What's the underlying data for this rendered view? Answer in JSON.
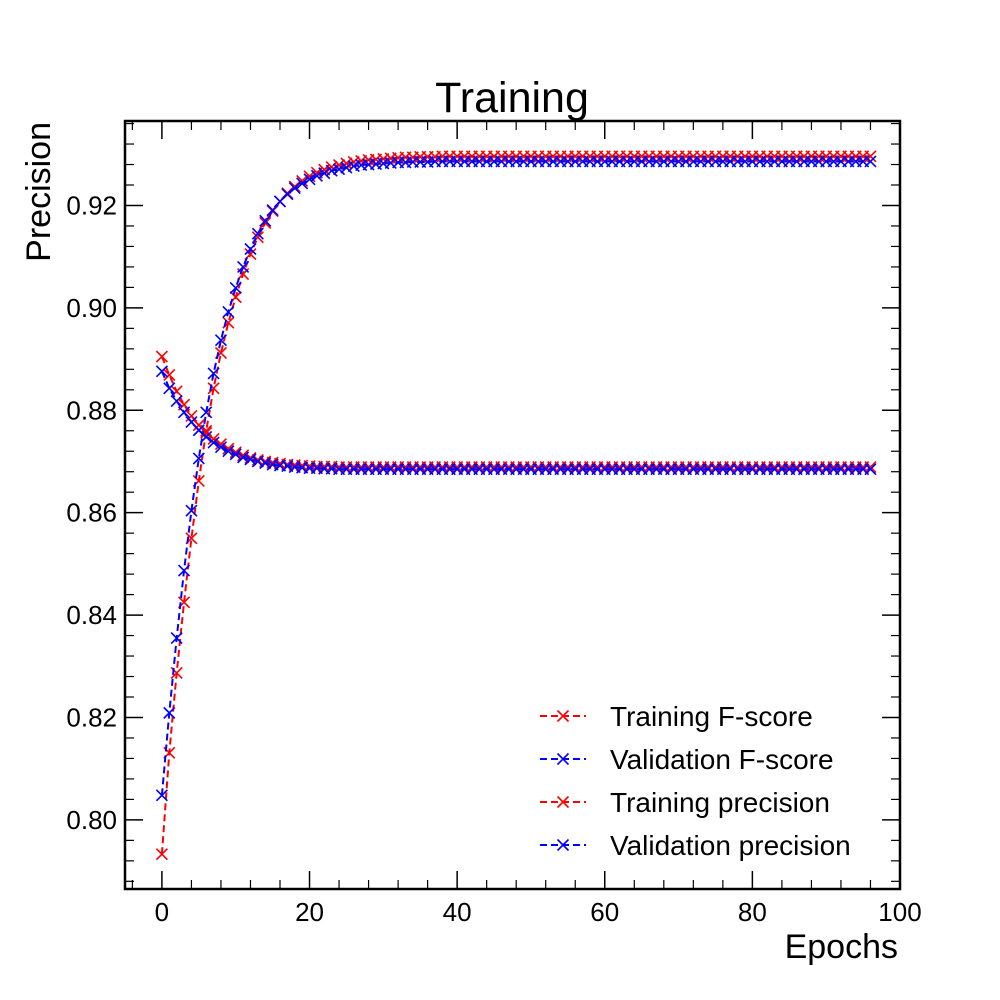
{
  "chart_data": {
    "type": "line",
    "title": "Training",
    "xlabel": "Epochs",
    "ylabel": "Precision",
    "xlim": [
      -5,
      100
    ],
    "ylim": [
      0.7865,
      0.9365
    ],
    "xticks": [
      0,
      20,
      40,
      60,
      80,
      100
    ],
    "xtick_labels": [
      "0",
      "20",
      "40",
      "60",
      "80",
      "100"
    ],
    "yticks": [
      0.8,
      0.82,
      0.84,
      0.86,
      0.88,
      0.9,
      0.92
    ],
    "ytick_labels": [
      "0.80",
      "0.82",
      "0.84",
      "0.86",
      "0.88",
      "0.90",
      "0.92"
    ],
    "grid": false,
    "legend_position": "bottom-right",
    "x": [
      0,
      1,
      2,
      3,
      4,
      5,
      6,
      7,
      8,
      9,
      10,
      11,
      12,
      13,
      14,
      15,
      16,
      17,
      18,
      19,
      20,
      21,
      22,
      23,
      24,
      25,
      26,
      27,
      28,
      29,
      30,
      31,
      32,
      33,
      34,
      35,
      36,
      37,
      38,
      39,
      40,
      41,
      42,
      43,
      44,
      45,
      46,
      47,
      48,
      49,
      50,
      51,
      52,
      53,
      54,
      55,
      56,
      57,
      58,
      59,
      60,
      61,
      62,
      63,
      64,
      65,
      66,
      67,
      68,
      69,
      70,
      71,
      72,
      73,
      74,
      75,
      76,
      77,
      78,
      79,
      80,
      81,
      82,
      83,
      84,
      85,
      86,
      87,
      88,
      89,
      90,
      91,
      92,
      93,
      94,
      95,
      96
    ],
    "series": [
      {
        "name": "Training F-score",
        "color": "#ff0000",
        "values": [
          0.7933,
          0.8131,
          0.8287,
          0.8425,
          0.855,
          0.8662,
          0.876,
          0.8843,
          0.8912,
          0.8971,
          0.9021,
          0.9066,
          0.9105,
          0.9138,
          0.9166,
          0.9189,
          0.9208,
          0.9224,
          0.9237,
          0.9248,
          0.9257,
          0.9264,
          0.927,
          0.9275,
          0.9279,
          0.9282,
          0.9285,
          0.9287,
          0.9289,
          0.929,
          0.9291,
          0.9292,
          0.9293,
          0.9294,
          0.9294,
          0.9295,
          0.9295,
          0.9295,
          0.9296,
          0.9296,
          0.9296,
          0.9296,
          0.9296,
          0.9296,
          0.9296,
          0.9296,
          0.9296,
          0.9296,
          0.9296,
          0.9296,
          0.9296,
          0.9296,
          0.9296,
          0.9296,
          0.9296,
          0.9296,
          0.9296,
          0.9296,
          0.9296,
          0.9296,
          0.9296,
          0.9296,
          0.9296,
          0.9296,
          0.9296,
          0.9296,
          0.9296,
          0.9296,
          0.9296,
          0.9296,
          0.9296,
          0.9296,
          0.9296,
          0.9296,
          0.9296,
          0.9296,
          0.9296,
          0.9296,
          0.9296,
          0.9296,
          0.9296,
          0.9296,
          0.9296,
          0.9296,
          0.9296,
          0.9296,
          0.9296,
          0.9296,
          0.9296,
          0.9296,
          0.9296,
          0.9296,
          0.9296,
          0.9296,
          0.9296,
          0.9296,
          0.9296
        ]
      },
      {
        "name": "Validation F-score",
        "color": "#0000ff",
        "values": [
          0.8048,
          0.8209,
          0.8355,
          0.8487,
          0.8604,
          0.8706,
          0.8796,
          0.8872,
          0.8937,
          0.8992,
          0.9039,
          0.908,
          0.9115,
          0.9145,
          0.917,
          0.9191,
          0.9208,
          0.9222,
          0.9234,
          0.9243,
          0.9251,
          0.9258,
          0.9263,
          0.9268,
          0.9271,
          0.9274,
          0.9277,
          0.9279,
          0.928,
          0.9281,
          0.9282,
          0.9283,
          0.9284,
          0.9284,
          0.9285,
          0.9285,
          0.9285,
          0.9286,
          0.9286,
          0.9286,
          0.9286,
          0.9286,
          0.9286,
          0.9286,
          0.9286,
          0.9286,
          0.9286,
          0.9286,
          0.9286,
          0.9286,
          0.9286,
          0.9286,
          0.9286,
          0.9286,
          0.9286,
          0.9286,
          0.9286,
          0.9286,
          0.9286,
          0.9286,
          0.9286,
          0.9286,
          0.9286,
          0.9286,
          0.9286,
          0.9286,
          0.9286,
          0.9286,
          0.9286,
          0.9286,
          0.9286,
          0.9286,
          0.9286,
          0.9286,
          0.9286,
          0.9286,
          0.9286,
          0.9286,
          0.9286,
          0.9286,
          0.9286,
          0.9286,
          0.9286,
          0.9286,
          0.9286,
          0.9286,
          0.9286,
          0.9286,
          0.9286,
          0.9286,
          0.9286,
          0.9286,
          0.9286,
          0.9286,
          0.9286,
          0.9286,
          0.9286
        ]
      },
      {
        "name": "Training precision",
        "color": "#ff0000",
        "values": [
          0.8905,
          0.8869,
          0.8837,
          0.8811,
          0.8789,
          0.8771,
          0.8756,
          0.8744,
          0.8734,
          0.8725,
          0.8718,
          0.8712,
          0.8707,
          0.8703,
          0.87,
          0.8698,
          0.8696,
          0.8694,
          0.8693,
          0.8692,
          0.8691,
          0.869,
          0.869,
          0.869,
          0.8689,
          0.8689,
          0.8689,
          0.8689,
          0.8689,
          0.8689,
          0.8689,
          0.8689,
          0.8689,
          0.8689,
          0.8689,
          0.8689,
          0.8689,
          0.8689,
          0.8689,
          0.8689,
          0.8689,
          0.8689,
          0.8689,
          0.8689,
          0.8689,
          0.8689,
          0.8689,
          0.8689,
          0.8689,
          0.8689,
          0.8689,
          0.8689,
          0.8689,
          0.8689,
          0.8689,
          0.8689,
          0.8689,
          0.8689,
          0.8689,
          0.8689,
          0.8689,
          0.8689,
          0.8689,
          0.8689,
          0.8689,
          0.8689,
          0.8689,
          0.8689,
          0.8689,
          0.8689,
          0.8689,
          0.8689,
          0.8689,
          0.8689,
          0.8689,
          0.8689,
          0.8689,
          0.8689,
          0.8689,
          0.8689,
          0.8689,
          0.8689,
          0.8689,
          0.8689,
          0.8689,
          0.8689,
          0.8689,
          0.8689,
          0.8689,
          0.8689,
          0.8689,
          0.8689,
          0.8689,
          0.8689,
          0.8689,
          0.8689,
          0.8689
        ]
      },
      {
        "name": "Validation precision",
        "color": "#0000ff",
        "values": [
          0.8876,
          0.8843,
          0.8818,
          0.8796,
          0.8777,
          0.8761,
          0.8748,
          0.8737,
          0.8728,
          0.872,
          0.8714,
          0.8708,
          0.8704,
          0.87,
          0.8697,
          0.8694,
          0.8692,
          0.8691,
          0.8689,
          0.8688,
          0.8687,
          0.8687,
          0.8686,
          0.8686,
          0.8685,
          0.8685,
          0.8685,
          0.8685,
          0.8685,
          0.8685,
          0.8685,
          0.8685,
          0.8685,
          0.8685,
          0.8685,
          0.8685,
          0.8685,
          0.8685,
          0.8685,
          0.8685,
          0.8685,
          0.8685,
          0.8685,
          0.8685,
          0.8685,
          0.8685,
          0.8685,
          0.8685,
          0.8685,
          0.8685,
          0.8685,
          0.8685,
          0.8685,
          0.8685,
          0.8685,
          0.8685,
          0.8685,
          0.8685,
          0.8685,
          0.8685,
          0.8685,
          0.8685,
          0.8685,
          0.8685,
          0.8685,
          0.8685,
          0.8685,
          0.8685,
          0.8685,
          0.8685,
          0.8685,
          0.8685,
          0.8685,
          0.8685,
          0.8685,
          0.8685,
          0.8685,
          0.8685,
          0.8685,
          0.8685,
          0.8685,
          0.8685,
          0.8685,
          0.8685,
          0.8685,
          0.8685,
          0.8685,
          0.8685,
          0.8685,
          0.8685,
          0.8685,
          0.8685,
          0.8685,
          0.8685,
          0.8685,
          0.8685,
          0.8685
        ]
      }
    ]
  }
}
